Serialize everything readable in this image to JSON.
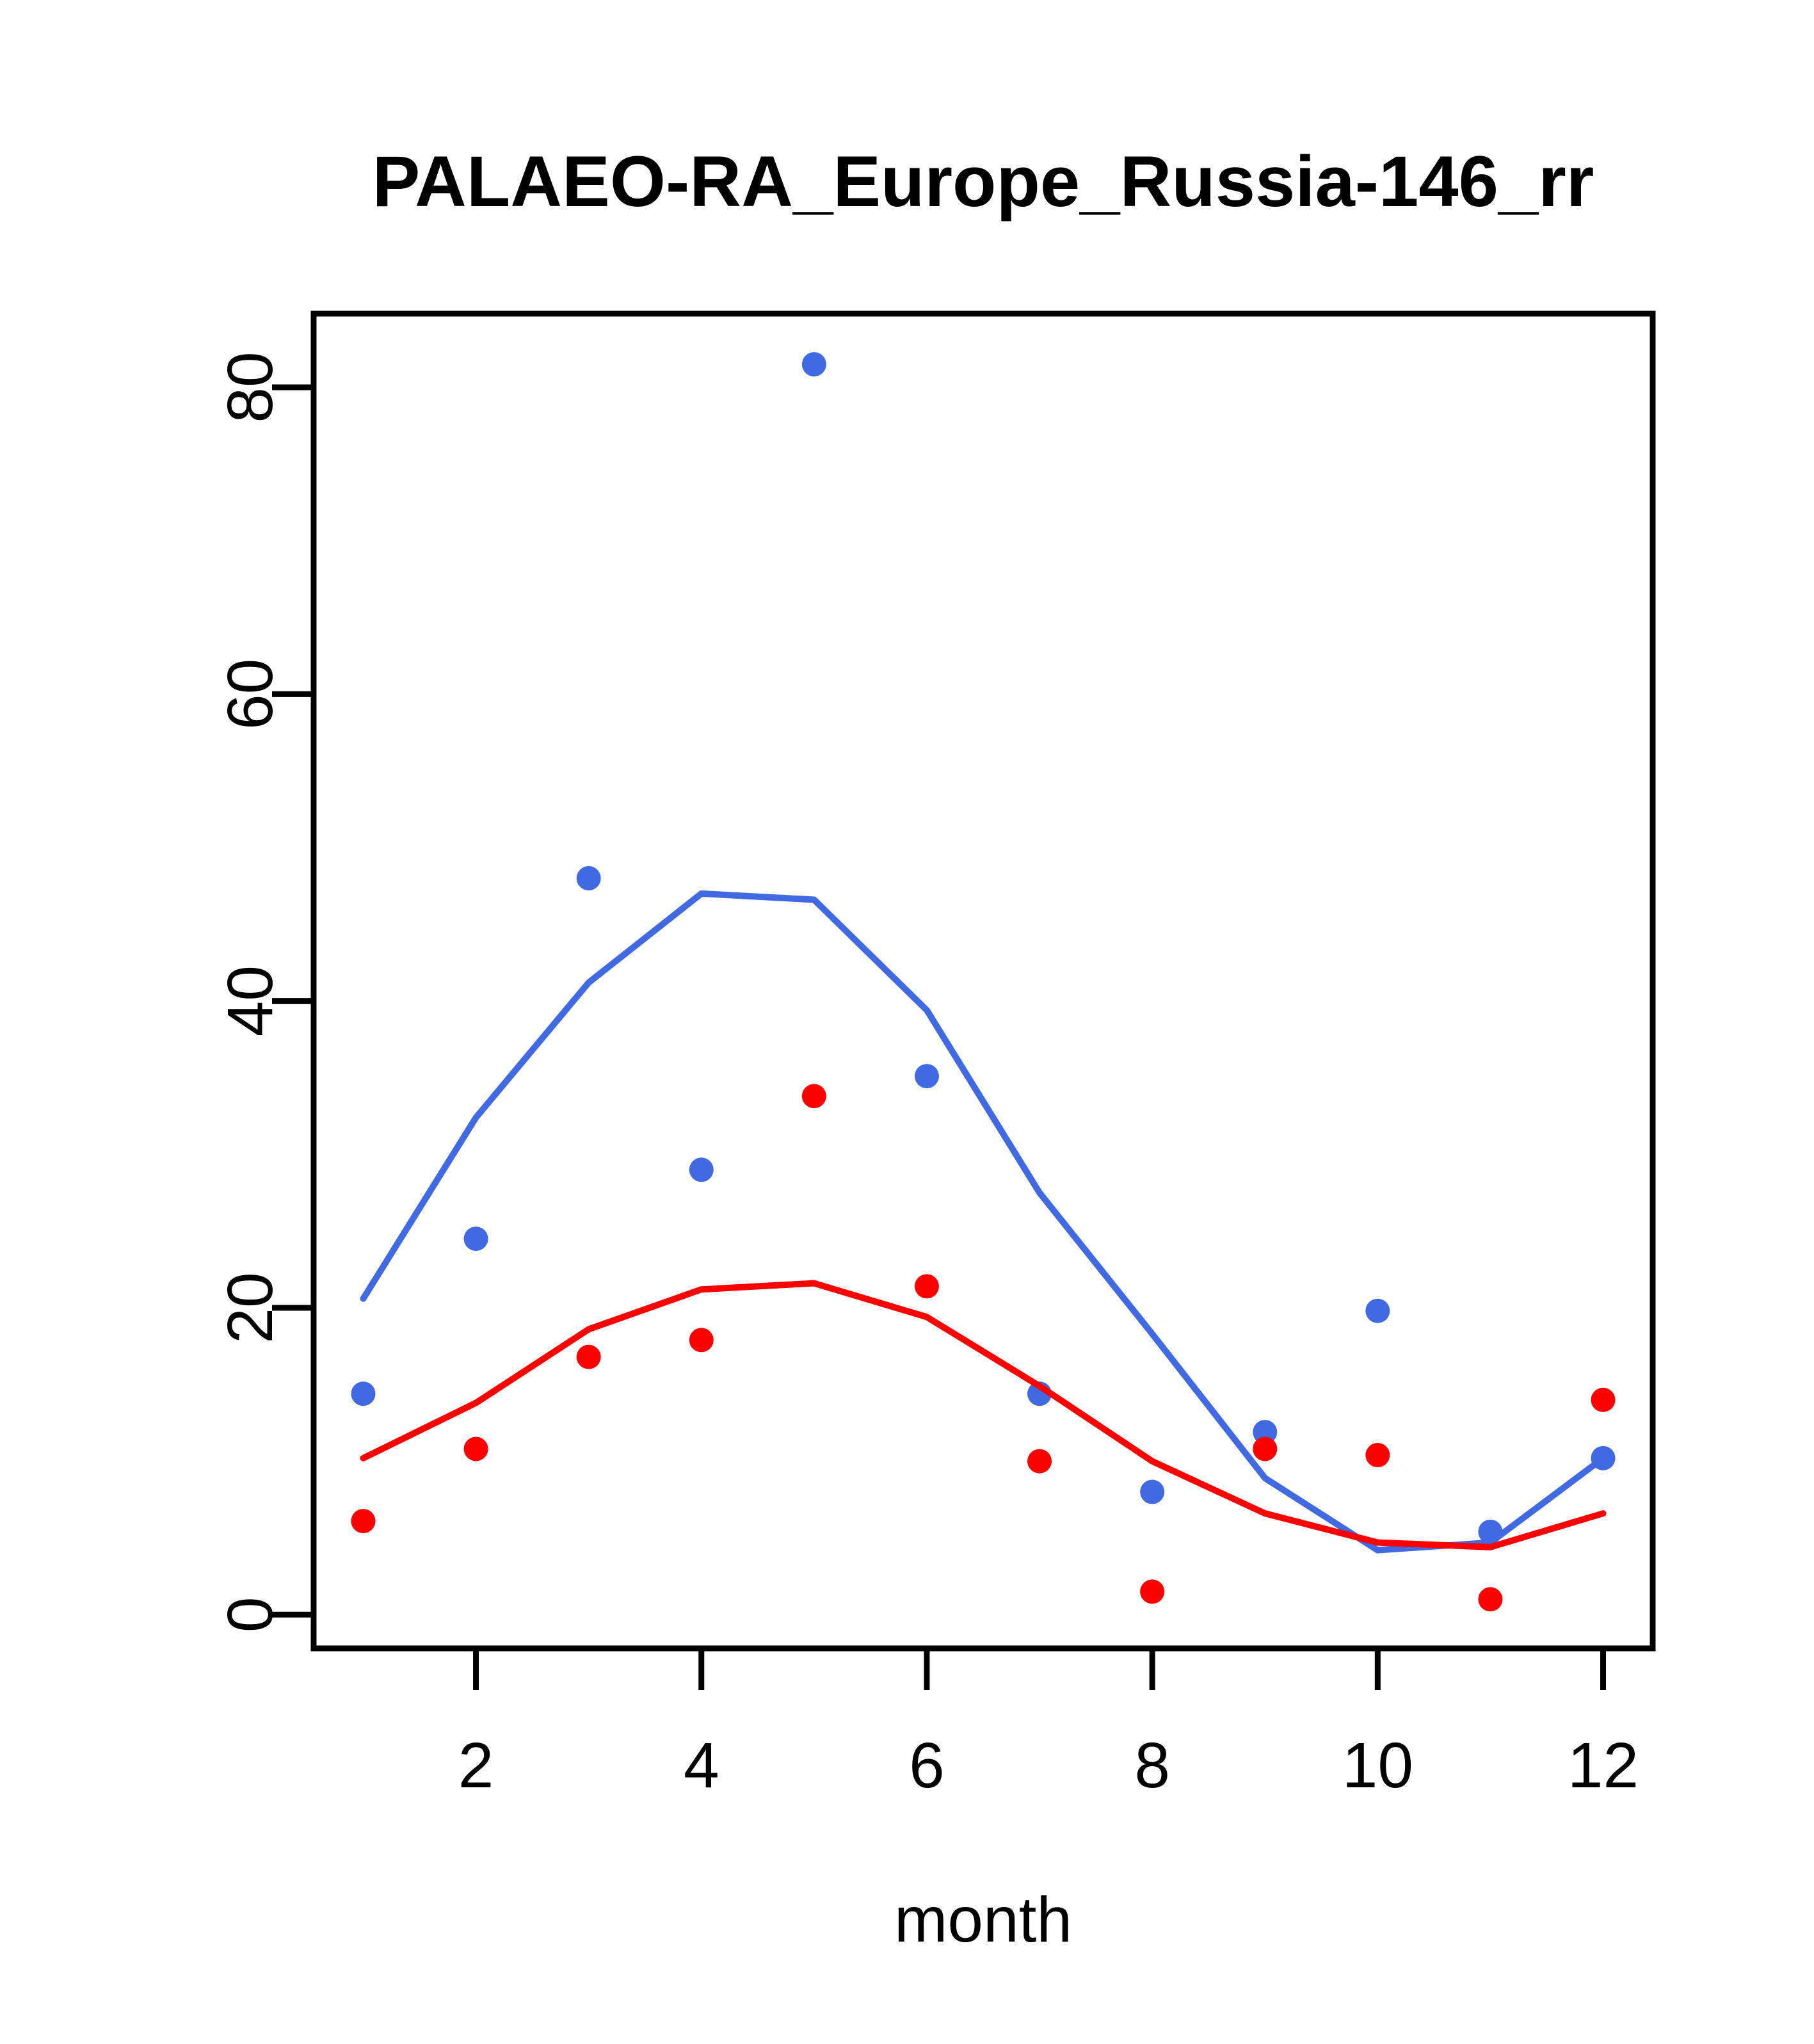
{
  "page": {
    "background_color": "#ffffff"
  },
  "chart_data": {
    "type": "scatter",
    "title": "PALAEO-RA_Europe_Russia-146_rr",
    "xlabel": "month",
    "ylabel": "",
    "grid": false,
    "legend_position": "none",
    "x_months": [
      1,
      2,
      3,
      4,
      5,
      6,
      7,
      8,
      9,
      10,
      11,
      12
    ],
    "xticks": [
      2,
      4,
      6,
      8,
      10,
      12
    ],
    "yticks": [
      0,
      20,
      40,
      60,
      80
    ],
    "xlim": [
      0.56,
      12.44
    ],
    "ylim": [
      -2.2,
      84.8
    ],
    "colors": {
      "blue": "#4169E1",
      "red": "#FF0000",
      "axis": "#000000"
    },
    "series": [
      {
        "name": "blue-points",
        "kind": "points",
        "color": "#4169E1",
        "values": [
          14.4,
          24.5,
          48.0,
          29.0,
          81.5,
          35.1,
          14.4,
          8.0,
          11.9,
          19.8,
          5.4,
          10.2
        ]
      },
      {
        "name": "red-points",
        "kind": "points",
        "color": "#FF0000",
        "values": [
          6.1,
          10.8,
          16.8,
          17.9,
          33.8,
          21.4,
          10.0,
          1.5,
          10.8,
          10.4,
          1.0,
          14.0
        ]
      },
      {
        "name": "blue-line",
        "kind": "line",
        "color": "#4169E1",
        "values": [
          20.6,
          32.4,
          41.2,
          47.0,
          46.6,
          39.4,
          27.5,
          18.3,
          8.9,
          4.2,
          4.7,
          10.2
        ]
      },
      {
        "name": "red-line",
        "kind": "line",
        "color": "#FF0000",
        "values": [
          10.2,
          13.8,
          18.6,
          21.2,
          21.6,
          19.4,
          14.9,
          10.0,
          6.6,
          4.7,
          4.4,
          6.6
        ]
      }
    ]
  }
}
